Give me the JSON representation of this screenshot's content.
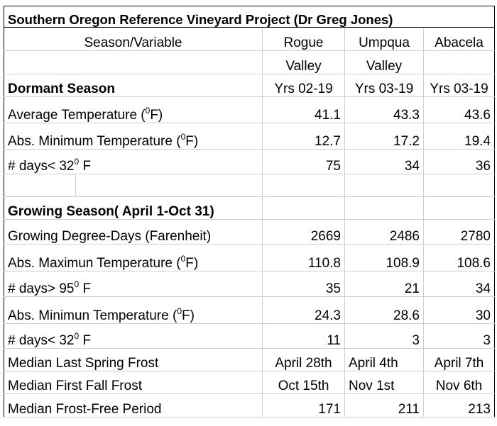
{
  "title": "Southern Oregon Reference Vineyard Project (Dr Greg Jones)",
  "header": {
    "variable_label": "Season/Variable",
    "section_label": "Dormant Season",
    "columns": [
      {
        "line1": "Rogue",
        "line2": "Valley",
        "years": "Yrs 02-19"
      },
      {
        "line1": "Umpqua",
        "line2": "Valley",
        "years": "Yrs 03-19"
      },
      {
        "line1": "Abacela",
        "line2": "",
        "years": "Yrs  03-19"
      }
    ]
  },
  "dormant": [
    {
      "pre": "Average Temperature (",
      "sup": "0",
      "post": "F)",
      "values": [
        "41.1",
        "43.3",
        "43.6"
      ]
    },
    {
      "pre": "Abs. Minimum Temperature (",
      "sup": "0",
      "post": "F)",
      "values": [
        "12.7",
        "17.2",
        "19.4"
      ]
    },
    {
      "pre": "# days< 32",
      "sup": "0",
      "post": " F",
      "values": [
        "75",
        "34",
        "36"
      ]
    }
  ],
  "growing_label": "Growing Season( April 1-Oct 31)",
  "growing": [
    {
      "pre": "Growing Degree-Days (Farenheit)",
      "sup": "",
      "post": "",
      "values": [
        "2669",
        "2486",
        "2780"
      ]
    },
    {
      "pre": "Abs. Maximun Temperature (",
      "sup": "0",
      "post": "F)",
      "values": [
        "110.8",
        "108.9",
        "108.6"
      ]
    },
    {
      "pre": "# days> 95",
      "sup": "0",
      "post": " F",
      "values": [
        "35",
        "21",
        "34"
      ]
    },
    {
      "pre": "Abs. Minimun Temperature (",
      "sup": "0",
      "post": "F)",
      "values": [
        "24.3",
        "28.6",
        "30"
      ]
    },
    {
      "pre": "# days< 32",
      "sup": "0",
      "post": " F",
      "values": [
        "11",
        "3",
        "3"
      ]
    }
  ],
  "frost": [
    {
      "label": "Median Last Spring Frost",
      "values": [
        "April 28th",
        "April 4th",
        "April 7th"
      ]
    },
    {
      "label": "Median First Fall Frost",
      "values": [
        "Oct 15th",
        "Nov 1st",
        "Nov 6th"
      ]
    },
    {
      "label": "Median Frost-Free Period",
      "values": [
        "171",
        "211",
        "213"
      ]
    }
  ]
}
